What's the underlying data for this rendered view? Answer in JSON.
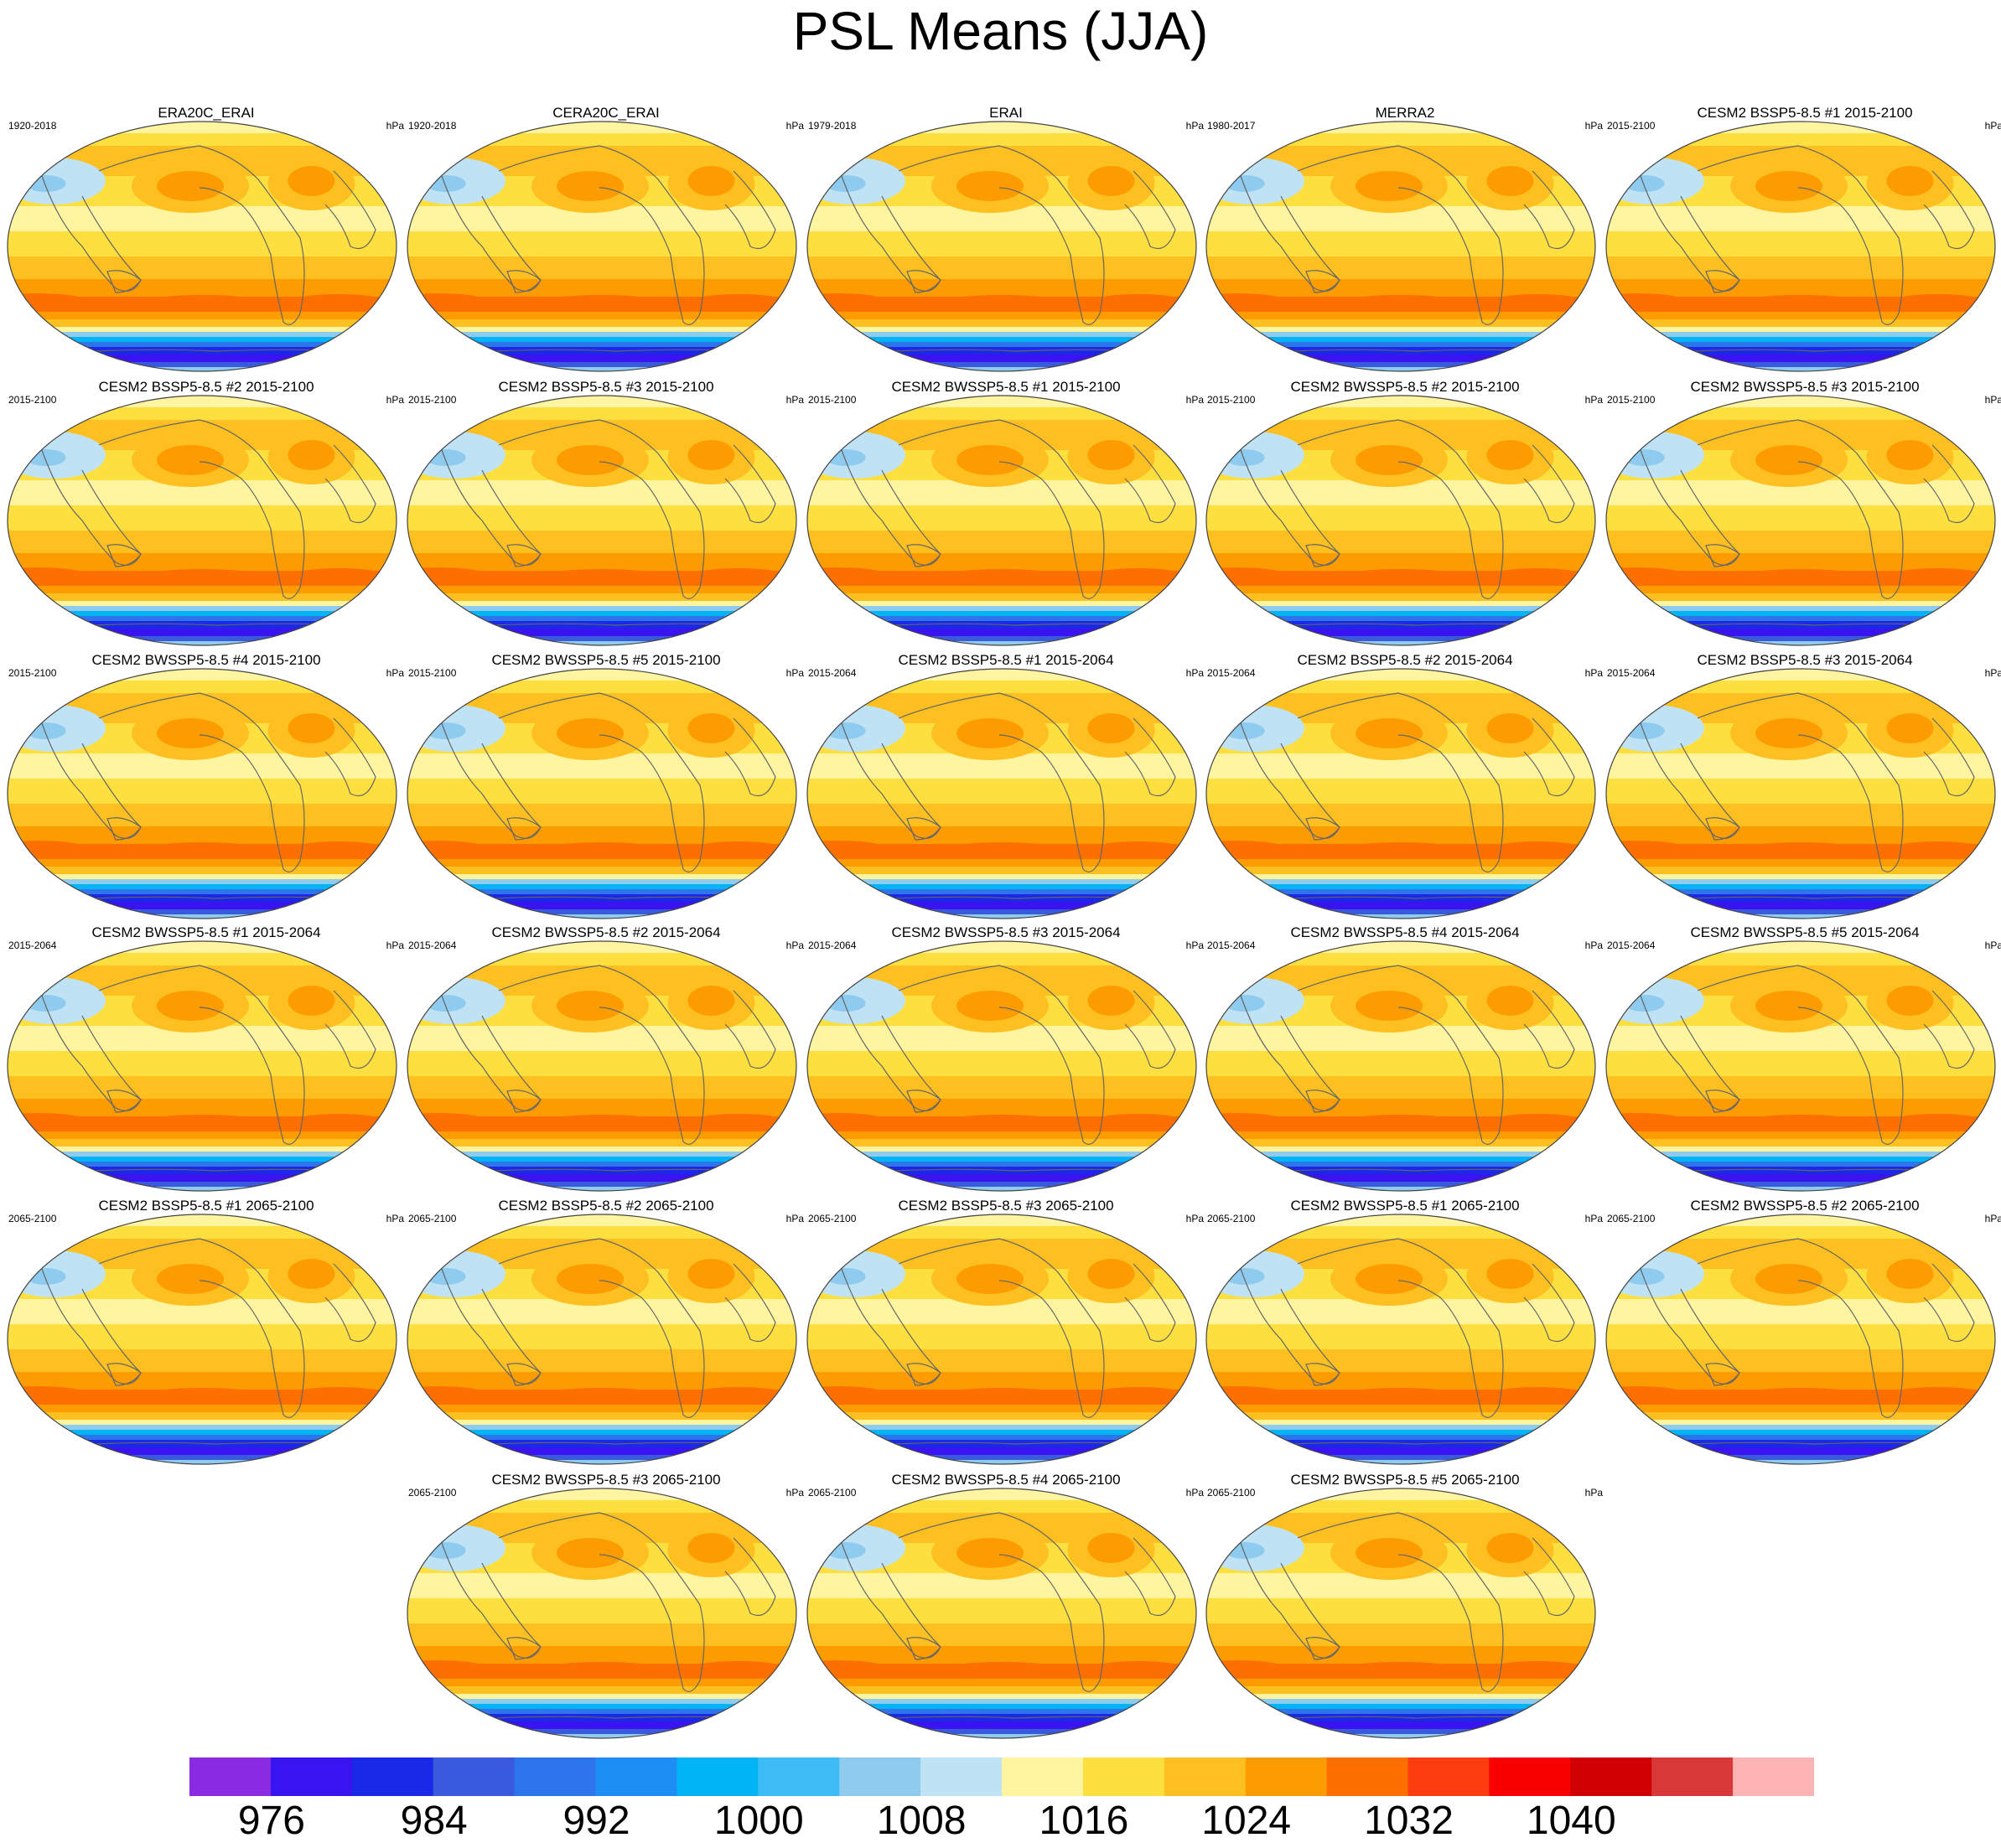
{
  "title": "PSL Means (JJA)",
  "units": "hPa",
  "panels": [
    {
      "title": "ERA20C_ERAI",
      "years": "1920-2018"
    },
    {
      "title": "CERA20C_ERAI",
      "years": "1920-2018"
    },
    {
      "title": "ERAI",
      "years": "1979-2018"
    },
    {
      "title": "MERRA2",
      "years": "1980-2017"
    },
    {
      "title": "CESM2 BSSP5-8.5 #1 2015-2100",
      "years": "2015-2100"
    },
    {
      "title": "CESM2 BSSP5-8.5 #2 2015-2100",
      "years": "2015-2100"
    },
    {
      "title": "CESM2 BSSP5-8.5 #3 2015-2100",
      "years": "2015-2100"
    },
    {
      "title": "CESM2 BWSSP5-8.5 #1 2015-2100",
      "years": "2015-2100"
    },
    {
      "title": "CESM2 BWSSP5-8.5 #2 2015-2100",
      "years": "2015-2100"
    },
    {
      "title": "CESM2 BWSSP5-8.5 #3 2015-2100",
      "years": "2015-2100"
    },
    {
      "title": "CESM2 BWSSP5-8.5 #4 2015-2100",
      "years": "2015-2100"
    },
    {
      "title": "CESM2 BWSSP5-8.5 #5 2015-2100",
      "years": "2015-2100"
    },
    {
      "title": "CESM2 BSSP5-8.5 #1 2015-2064",
      "years": "2015-2064"
    },
    {
      "title": "CESM2 BSSP5-8.5 #2 2015-2064",
      "years": "2015-2064"
    },
    {
      "title": "CESM2 BSSP5-8.5 #3 2015-2064",
      "years": "2015-2064"
    },
    {
      "title": "CESM2 BWSSP5-8.5 #1 2015-2064",
      "years": "2015-2064"
    },
    {
      "title": "CESM2 BWSSP5-8.5 #2 2015-2064",
      "years": "2015-2064"
    },
    {
      "title": "CESM2 BWSSP5-8.5 #3 2015-2064",
      "years": "2015-2064"
    },
    {
      "title": "CESM2 BWSSP5-8.5 #4 2015-2064",
      "years": "2015-2064"
    },
    {
      "title": "CESM2 BWSSP5-8.5 #5 2015-2064",
      "years": "2015-2064"
    },
    {
      "title": "CESM2 BSSP5-8.5 #1 2065-2100",
      "years": "2065-2100"
    },
    {
      "title": "CESM2 BSSP5-8.5 #2 2065-2100",
      "years": "2065-2100"
    },
    {
      "title": "CESM2 BSSP5-8.5 #3 2065-2100",
      "years": "2065-2100"
    },
    {
      "title": "CESM2 BWSSP5-8.5 #1 2065-2100",
      "years": "2065-2100"
    },
    {
      "title": "CESM2 BWSSP5-8.5 #2 2065-2100",
      "years": "2065-2100"
    },
    {
      "title": "CESM2 BWSSP5-8.5 #3 2065-2100",
      "years": "2065-2100"
    },
    {
      "title": "CESM2 BWSSP5-8.5 #4 2065-2100",
      "years": "2065-2100"
    },
    {
      "title": "CESM2 BWSSP5-8.5 #5 2065-2100",
      "years": "2065-2100"
    }
  ],
  "colorbar": {
    "colors": [
      "#8a2be2",
      "#3a14f0",
      "#1a28e8",
      "#3a5ade",
      "#2e74ea",
      "#1e8ef5",
      "#00b4f5",
      "#3ebcf5",
      "#8ecbee",
      "#bfe2f5",
      "#fff4a0",
      "#fde040",
      "#fdc020",
      "#fd9c00",
      "#fd7000",
      "#fd3c10",
      "#fa0000",
      "#d00000",
      "#d83838",
      "#ffb4b4"
    ],
    "tick_labels": [
      "976",
      "984",
      "992",
      "1000",
      "1008",
      "1016",
      "1024",
      "1032",
      "1040"
    ]
  }
}
